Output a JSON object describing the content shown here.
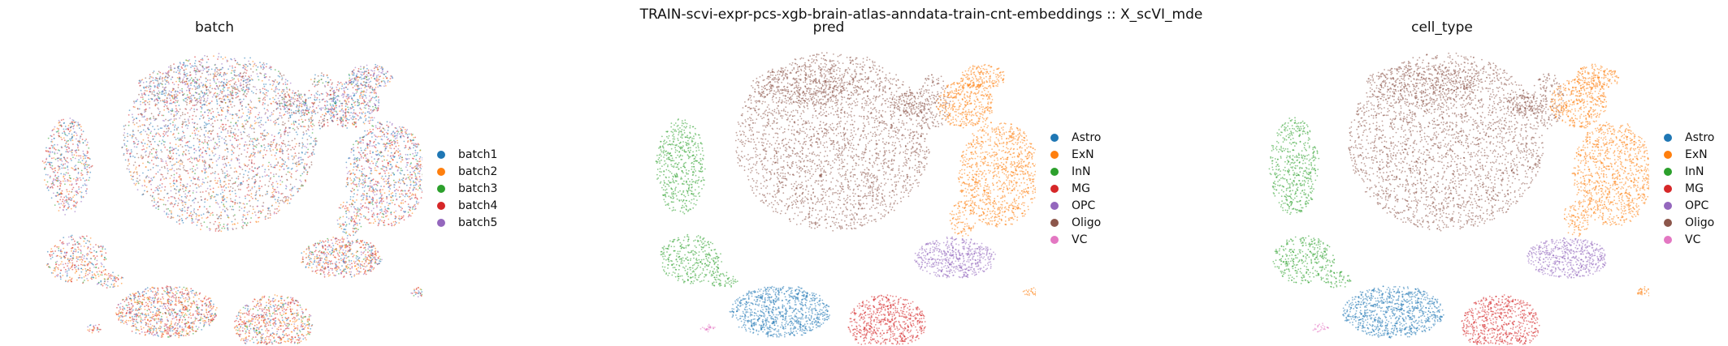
{
  "figure": {
    "suptitle": "TRAIN-scvi-expr-pcs-xgb-brain-atlas-anndata-train-cnt-embeddings :: X_scVI_mde"
  },
  "chart_data": [
    {
      "type": "scatter",
      "title": "batch",
      "legend_position": "right",
      "grid": false,
      "axes": "hidden",
      "categories": [
        "batch1",
        "batch2",
        "batch3",
        "batch4",
        "batch5"
      ],
      "colors": [
        "#1f77b4",
        "#ff7f0e",
        "#2ca02c",
        "#d62728",
        "#9467bd"
      ]
    },
    {
      "type": "scatter",
      "title": "pred",
      "legend_position": "right",
      "grid": false,
      "axes": "hidden",
      "categories": [
        "Astro",
        "ExN",
        "InN",
        "MG",
        "OPC",
        "Oligo",
        "VC"
      ],
      "colors": [
        "#1f77b4",
        "#ff7f0e",
        "#2ca02c",
        "#d62728",
        "#9467bd",
        "#8c564b",
        "#e377c2"
      ]
    },
    {
      "type": "scatter",
      "title": "cell_type",
      "legend_position": "right",
      "grid": false,
      "axes": "hidden",
      "categories": [
        "Astro",
        "ExN",
        "InN",
        "MG",
        "OPC",
        "Oligo",
        "VC"
      ],
      "colors": [
        "#1f77b4",
        "#ff7f0e",
        "#2ca02c",
        "#d62728",
        "#9467bd",
        "#8c564b",
        "#e377c2"
      ]
    }
  ]
}
